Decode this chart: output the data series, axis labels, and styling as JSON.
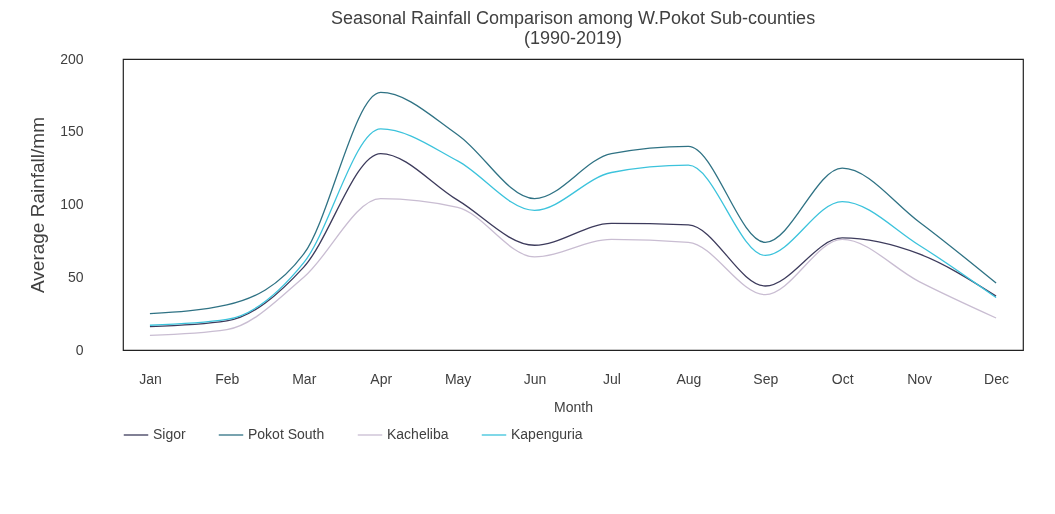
{
  "chart_data": {
    "type": "line",
    "title": [
      "Seasonal Rainfall Comparison among W.Pokot Sub-counties",
      "(1990-2019)"
    ],
    "xlabel": "Month",
    "ylabel": "Average Rainfall/mm",
    "categories": [
      "Jan",
      "Feb",
      "Mar",
      "Apr",
      "May",
      "Jun",
      "Jul",
      "Aug",
      "Sep",
      "Oct",
      "Nov",
      "Dec"
    ],
    "series": [
      {
        "name": "Sigor",
        "color": "#3d3b5c",
        "values": [
          16,
          20,
          57,
          135,
          103,
          72,
          87,
          86,
          44,
          77,
          66,
          37
        ]
      },
      {
        "name": "Pokot South",
        "color": "#2f7284",
        "values": [
          25,
          31,
          66,
          177,
          148,
          104,
          135,
          140,
          74,
          125,
          88,
          46
        ]
      },
      {
        "name": "Kacheliba",
        "color": "#c9bdd2",
        "values": [
          10,
          14,
          50,
          104,
          98,
          64,
          76,
          74,
          38,
          76,
          47,
          22
        ]
      },
      {
        "name": "Kapenguria",
        "color": "#3cc3dc",
        "values": [
          17,
          21,
          60,
          152,
          130,
          96,
          122,
          127,
          65,
          102,
          72,
          36
        ]
      }
    ],
    "ylim": [
      0,
      200
    ],
    "yticks": [
      0,
      50,
      100,
      150,
      200
    ],
    "grid": false,
    "legend": "bottom",
    "line_style": "solid",
    "marker": "none"
  }
}
